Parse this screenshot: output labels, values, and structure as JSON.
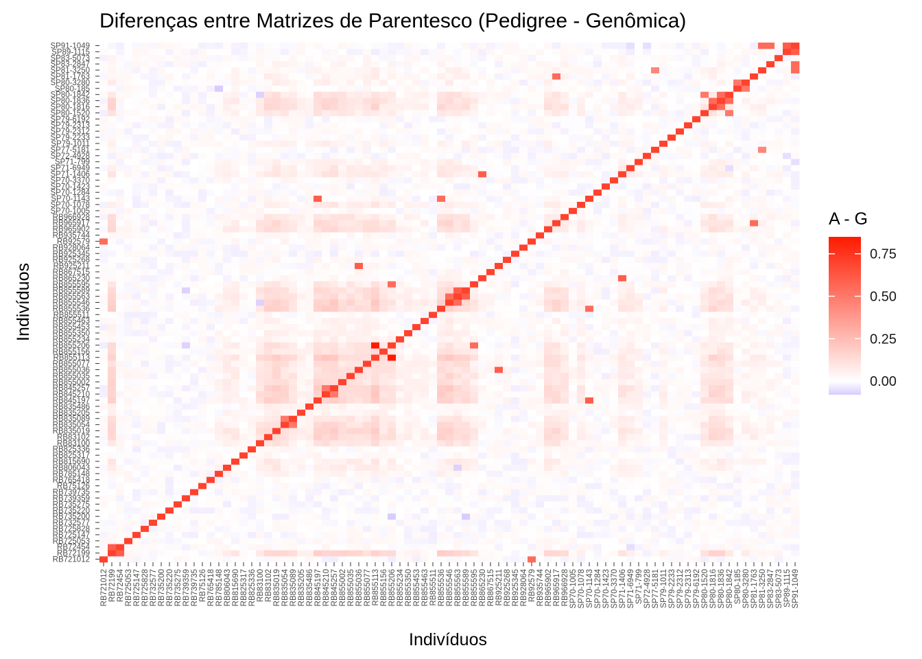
{
  "chart_data": {
    "type": "heatmap",
    "title": "Diferenças entre Matrizes de Parentesco (Pedigree - Genômica)",
    "xlabel": "Indivíduos",
    "ylabel": "Indivíduos",
    "legend_title": "A - G",
    "legend_ticks": [
      "0.75",
      "0.50",
      "0.25",
      "0.00"
    ],
    "legend_tick_values": [
      0.75,
      0.5,
      0.25,
      0.0
    ],
    "color_scale": {
      "min": -0.08,
      "mid": 0.0,
      "max": 0.85,
      "low": "#d9ccff",
      "midcolor": "#ffffff",
      "high": "#ff1a00"
    },
    "diagonal_value": 0.7,
    "grid": false,
    "legend_position": "right",
    "labels": [
      "RB721012",
      "RB72199",
      "RB72454",
      "RB725053",
      "RB725147",
      "RB725828",
      "RB732577",
      "RB735200",
      "RB735220",
      "RB735275",
      "RB739359",
      "RB739735",
      "RB75126",
      "RB765418",
      "RB785148",
      "RB806043",
      "RB815690",
      "RB825317",
      "RB825336",
      "RB83100",
      "RB83102",
      "RB835019",
      "RB835054",
      "RB835089",
      "RB835205",
      "RB835486",
      "RB845197",
      "RB845210",
      "RB845257",
      "RB855002",
      "RB855035",
      "RB855036",
      "RB855077",
      "RB855113",
      "RB855156",
      "RB855206",
      "RB855234",
      "RB855350",
      "RB855453",
      "RB855463",
      "RB855511",
      "RB855536",
      "RB855546",
      "RB855563",
      "RB855589",
      "RB855595",
      "RB865230",
      "RB867515",
      "RB925211",
      "RB925268",
      "RB925345",
      "RB928064",
      "RB92579",
      "RB935744",
      "RB965902",
      "RB965917",
      "RB966928",
      "SP70-1005",
      "SP70-1078",
      "SP70-1143",
      "SP70-1284",
      "SP70-1423",
      "SP70-3370",
      "SP71-1406",
      "SP71-6949",
      "SP71-799",
      "SP72-4928",
      "SP77-5181",
      "SP79-1011",
      "SP79-2233",
      "SP79-2312",
      "SP79-2313",
      "SP79-6192",
      "SP80-1520",
      "SP80-1816",
      "SP80-1836",
      "SP80-1842",
      "SP80-185",
      "SP80-3280",
      "SP81-1763",
      "SP81-3250",
      "SP83-2847",
      "SP83-5073",
      "SP89-1115",
      "SP91-1049"
    ],
    "labels_y": [
      "RB721012",
      "RB72199",
      "RB72454",
      "RB725053",
      "RB725147",
      "RB725828",
      "RB732577",
      "RB735200",
      "RB735220",
      "RB735275",
      "RB739359",
      "RB739735",
      "RB75126",
      "RB765418",
      "RB785148",
      "RB806043",
      "RB815690",
      "RB825317",
      "RB825336",
      "RB83100",
      "RB83102",
      "RB835019",
      "RB835054",
      "RB835089",
      "RB835205",
      "RB835486",
      "RB845197",
      "RB845210",
      "RB845257",
      "RB855002",
      "RB855035",
      "RB855036",
      "RB855077",
      "RB855113",
      "RB855156",
      "RB855206",
      "RB855234",
      "RB855350",
      "RB855453",
      "RB855463",
      "RB855511",
      "RB855536",
      "RB855546",
      "RB855563",
      "RB855589",
      "RB855595",
      "RB865230",
      "RB867515",
      "RB925211",
      "RB925268",
      "RB925345",
      "RB928064",
      "RB92579",
      "RB935744",
      "RB965902",
      "RB965917",
      "RB966928",
      "SP70-1005",
      "SP70-1078",
      "SP70-1143",
      "SP70-1284",
      "SP70-1423",
      "SP70-3370",
      "SP71-1406",
      "SP71-6949",
      "SP71-799",
      "SP72-4928",
      "SP77-5181",
      "SP79-1011",
      "SP79-2233",
      "SP79-2312",
      "SP79-2313",
      "SP79-6192",
      "SP80-1520",
      "SP80-1816",
      "SP80-1836",
      "SP80-1842",
      "SP80-185",
      "SP80-3280",
      "SP81-1763",
      "SP81-3250",
      "SP83-2847",
      "SP83-5073",
      "SP89-1115",
      "SP91-1049"
    ],
    "row_offsets_desc": "per-label additive offsets (data units) applied to pair values",
    "offsets": [
      0.0,
      0.2,
      0.02,
      0.02,
      0.0,
      0.0,
      0.0,
      0.0,
      0.0,
      0.0,
      0.0,
      0.0,
      0.0,
      0.0,
      0.05,
      0.08,
      0.08,
      0.02,
      0.02,
      0.12,
      0.18,
      0.18,
      0.15,
      0.12,
      0.05,
      0.05,
      0.18,
      0.2,
      0.2,
      0.15,
      0.15,
      0.15,
      0.15,
      0.2,
      0.12,
      0.12,
      0.05,
      0.05,
      0.05,
      0.05,
      0.02,
      0.18,
      0.2,
      0.15,
      0.15,
      0.1,
      0.02,
      0.02,
      0.02,
      0.02,
      0.0,
      0.0,
      0.02,
      0.02,
      0.15,
      0.15,
      0.12,
      0.02,
      0.08,
      0.02,
      0.0,
      0.0,
      0.02,
      0.1,
      0.08,
      0.05,
      0.0,
      0.0,
      0.05,
      0.0,
      0.0,
      0.0,
      0.0,
      0.1,
      0.15,
      0.15,
      0.12,
      0.02,
      0.05,
      0.05,
      0.05,
      0.03,
      0.02,
      0.0,
      0.0
    ],
    "highlights": [
      {
        "row": "RB855206",
        "col": "RB855113",
        "value": 0.85
      },
      {
        "row": "RB855113",
        "col": "RB855206",
        "value": 0.85
      },
      {
        "row": "SP80-1836",
        "col": "SP80-1816",
        "value": 0.55
      },
      {
        "row": "SP80-1816",
        "col": "SP80-1836",
        "value": 0.55
      },
      {
        "row": "SP80-1842",
        "col": "SP80-1836",
        "value": 0.55
      },
      {
        "row": "SP80-1836",
        "col": "SP80-1842",
        "value": 0.55
      },
      {
        "row": "SP80-1520",
        "col": "SP80-1842",
        "value": 0.5
      },
      {
        "row": "SP80-1842",
        "col": "SP80-1520",
        "value": 0.5
      },
      {
        "row": "RB855563",
        "col": "RB855589",
        "value": 0.6
      },
      {
        "row": "RB855589",
        "col": "RB855563",
        "value": 0.6
      },
      {
        "row": "RB855546",
        "col": "RB855563",
        "value": 0.55
      },
      {
        "row": "RB855563",
        "col": "RB855546",
        "value": 0.55
      },
      {
        "row": "SP91-1049",
        "col": "SP89-1115",
        "value": 0.6
      },
      {
        "row": "SP89-1115",
        "col": "SP91-1049",
        "value": 0.6
      },
      {
        "row": "SP91-1049",
        "col": "SP81-3250",
        "value": 0.55
      },
      {
        "row": "SP81-3250",
        "col": "SP91-1049",
        "value": 0.55
      },
      {
        "row": "SP80-185",
        "col": "SP80-3280",
        "value": 0.5
      },
      {
        "row": "SP80-3280",
        "col": "SP80-185",
        "value": 0.5
      },
      {
        "row": "RB72454",
        "col": "RB72199",
        "value": 0.6
      },
      {
        "row": "RB72199",
        "col": "RB72454",
        "value": 0.6
      },
      {
        "row": "SP71-1406",
        "col": "RB865230",
        "value": 0.6
      },
      {
        "row": "RB865230",
        "col": "SP71-1406",
        "value": 0.6
      },
      {
        "row": "RB855206",
        "col": "RB855595",
        "value": 0.55
      },
      {
        "row": "RB855595",
        "col": "RB855206",
        "value": 0.55
      },
      {
        "row": "SP70-1143",
        "col": "RB845197",
        "value": 0.6
      },
      {
        "row": "RB845197",
        "col": "SP70-1143",
        "value": 0.6
      },
      {
        "row": "RB92579",
        "col": "RB721012",
        "value": 0.55
      },
      {
        "row": "RB721012",
        "col": "RB92579",
        "value": 0.55
      },
      {
        "row": "RB835089",
        "col": "RB835054",
        "value": 0.5
      },
      {
        "row": "RB835054",
        "col": "RB835089",
        "value": 0.5
      },
      {
        "row": "RB845210",
        "col": "RB845257",
        "value": 0.5
      },
      {
        "row": "RB845257",
        "col": "RB845210",
        "value": 0.5
      },
      {
        "row": "RB855536",
        "col": "SP70-1143",
        "value": 0.55
      },
      {
        "row": "SP70-1143",
        "col": "RB855536",
        "value": 0.55
      },
      {
        "row": "RB925211",
        "col": "RB855036",
        "value": 0.6
      },
      {
        "row": "RB855036",
        "col": "RB925211",
        "value": 0.6
      },
      {
        "row": "SP81-1763",
        "col": "RB965917",
        "value": 0.55
      },
      {
        "row": "RB965917",
        "col": "SP81-1763",
        "value": 0.55
      },
      {
        "row": "SP83-2847",
        "col": "SP91-1049",
        "value": 0.55
      },
      {
        "row": "SP91-1049",
        "col": "SP83-2847",
        "value": 0.55
      },
      {
        "row": "SP77-5181",
        "col": "SP81-3250",
        "value": 0.45
      },
      {
        "row": "SP81-3250",
        "col": "SP77-5181",
        "value": 0.45
      }
    ],
    "negatives": [
      {
        "row": "SP80-185",
        "col": "RB785148",
        "value": -0.08
      },
      {
        "row": "RB735200",
        "col": "RB855206",
        "value": -0.08
      },
      {
        "row": "RB735200",
        "col": "RB855589",
        "value": -0.08
      },
      {
        "row": "RB855206",
        "col": "RB739359",
        "value": -0.07
      },
      {
        "row": "RB855589",
        "col": "RB739359",
        "value": -0.07
      },
      {
        "row": "SP71-6949",
        "col": "SP80-1842",
        "value": -0.05
      },
      {
        "row": "SP71-799",
        "col": "SP91-1049",
        "value": -0.05
      },
      {
        "row": "SP72-4928",
        "col": "SP89-1115",
        "value": -0.05
      },
      {
        "row": "SP80-1842",
        "col": "RB83100",
        "value": -0.07
      },
      {
        "row": "RB855546",
        "col": "RB83100",
        "value": -0.07
      },
      {
        "row": "RB806043",
        "col": "RB855563",
        "value": -0.07
      },
      {
        "row": "RB72454",
        "col": "SP71-6949",
        "value": -0.05
      },
      {
        "row": "SP91-1049",
        "col": "SP71-6949",
        "value": -0.05
      },
      {
        "row": "SP91-1049",
        "col": "SP72-4928",
        "value": -0.05
      }
    ]
  }
}
